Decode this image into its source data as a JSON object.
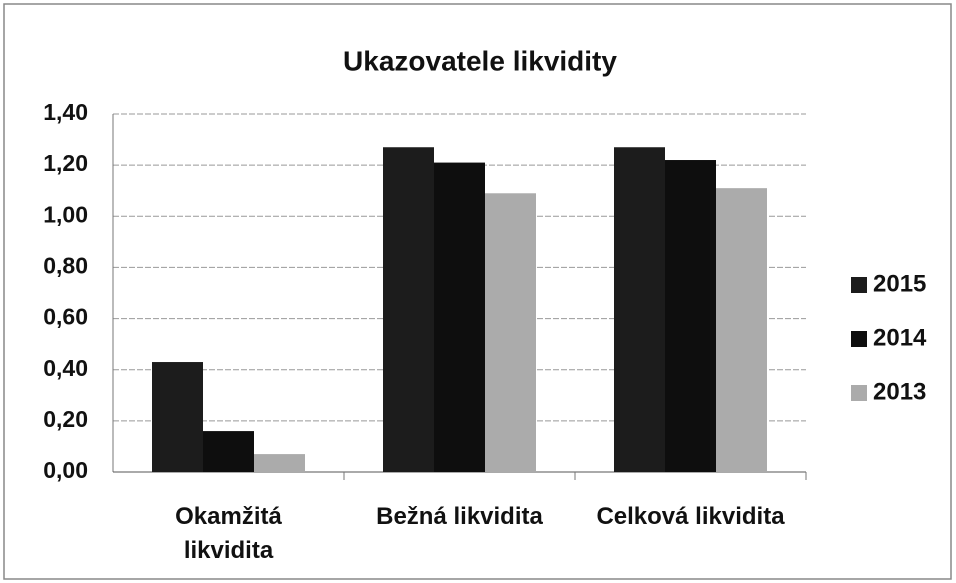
{
  "chart_data": {
    "type": "bar",
    "title": "Ukazovatele likvidity",
    "categories": [
      "Okamžitá likvidita",
      "Bežná likvidita",
      "Celková likvidita"
    ],
    "series": [
      {
        "name": "2015",
        "color": "#1c1c1c",
        "values": [
          0.43,
          1.27,
          1.27
        ]
      },
      {
        "name": "2014",
        "color": "#0e0e0e",
        "values": [
          0.16,
          1.21,
          1.22
        ]
      },
      {
        "name": "2013",
        "color": "#ababab",
        "values": [
          0.07,
          1.09,
          1.11
        ]
      }
    ],
    "ylim": [
      0,
      1.4
    ],
    "yticks": [
      {
        "value": 0,
        "label": "0,00"
      },
      {
        "value": 0.2,
        "label": "0,20"
      },
      {
        "value": 0.4,
        "label": "0,40"
      },
      {
        "value": 0.6,
        "label": "0,60"
      },
      {
        "value": 0.8,
        "label": "0,80"
      },
      {
        "value": 1.0,
        "label": "1,00"
      },
      {
        "value": 1.2,
        "label": "1,20"
      },
      {
        "value": 1.4,
        "label": "1,40"
      }
    ],
    "grid": true,
    "legend": "right"
  }
}
